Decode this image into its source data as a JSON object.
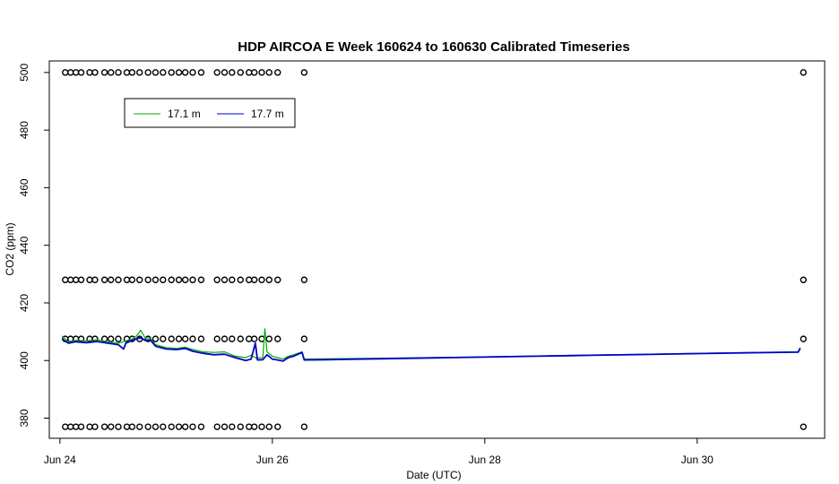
{
  "chart_data": {
    "type": "line",
    "title": "HDP AIRCOA E  Week 160624 to 160630  Calibrated Timeseries",
    "xlabel": "Date (UTC)",
    "ylabel": "CO2 (ppm)",
    "xlim": [
      23.9,
      31.2
    ],
    "ylim": [
      373,
      504
    ],
    "x_ticks": [
      {
        "value": 24,
        "label": "Jun 24"
      },
      {
        "value": 26,
        "label": "Jun 26"
      },
      {
        "value": 28,
        "label": "Jun 28"
      },
      {
        "value": 30,
        "label": "Jun 30"
      }
    ],
    "y_ticks": [
      380,
      400,
      420,
      440,
      460,
      480,
      500
    ],
    "legend": {
      "position": "top-left",
      "entries": [
        {
          "label": "17.1 m",
          "color": "#00aa00"
        },
        {
          "label": "17.7 m",
          "color": "#0000cc"
        }
      ]
    },
    "series": [
      {
        "name": "17.1 m",
        "color": "#00aa00",
        "points": [
          [
            24.02,
            408.5
          ],
          [
            24.08,
            406.5
          ],
          [
            24.15,
            407.0
          ],
          [
            24.25,
            406.8
          ],
          [
            24.35,
            407.2
          ],
          [
            24.45,
            406.5
          ],
          [
            24.55,
            406.0
          ],
          [
            24.62,
            406.8
          ],
          [
            24.68,
            407.5
          ],
          [
            24.72,
            408.5
          ],
          [
            24.76,
            410.5
          ],
          [
            24.8,
            408.0
          ],
          [
            24.85,
            407.8
          ],
          [
            24.9,
            405.5
          ],
          [
            25.0,
            404.5
          ],
          [
            25.1,
            404.2
          ],
          [
            25.18,
            404.6
          ],
          [
            25.25,
            403.8
          ],
          [
            25.35,
            403.0
          ],
          [
            25.45,
            402.8
          ],
          [
            25.55,
            403.0
          ],
          [
            25.65,
            401.5
          ],
          [
            25.75,
            401.0
          ],
          [
            25.8,
            401.8
          ],
          [
            25.85,
            400.8
          ],
          [
            25.91,
            401.0
          ],
          [
            25.93,
            411.0
          ],
          [
            25.95,
            403.0
          ],
          [
            26.0,
            401.5
          ],
          [
            26.05,
            401.0
          ],
          [
            26.1,
            400.5
          ],
          [
            26.15,
            401.5
          ],
          [
            26.2,
            402.0
          ],
          [
            26.28,
            403.0
          ],
          [
            26.3,
            400.5
          ],
          [
            26.5,
            400.6
          ],
          [
            27.0,
            400.8
          ],
          [
            27.5,
            401.0
          ],
          [
            28.0,
            401.3
          ],
          [
            28.5,
            401.6
          ],
          [
            29.0,
            401.9
          ],
          [
            29.5,
            402.2
          ],
          [
            30.0,
            402.5
          ],
          [
            30.5,
            402.8
          ],
          [
            30.95,
            403.0
          ],
          [
            30.97,
            404.5
          ]
        ]
      },
      {
        "name": "17.7 m",
        "color": "#0000cc",
        "points": [
          [
            24.02,
            407.5
          ],
          [
            24.08,
            406.0
          ],
          [
            24.15,
            406.5
          ],
          [
            24.25,
            406.2
          ],
          [
            24.35,
            406.6
          ],
          [
            24.45,
            406.0
          ],
          [
            24.55,
            405.5
          ],
          [
            24.6,
            404.0
          ],
          [
            24.62,
            406.0
          ],
          [
            24.68,
            407.0
          ],
          [
            24.72,
            407.5
          ],
          [
            24.76,
            408.0
          ],
          [
            24.8,
            407.0
          ],
          [
            24.85,
            407.2
          ],
          [
            24.9,
            405.0
          ],
          [
            25.0,
            404.0
          ],
          [
            25.1,
            403.8
          ],
          [
            25.18,
            404.2
          ],
          [
            25.25,
            403.2
          ],
          [
            25.35,
            402.5
          ],
          [
            25.45,
            402.0
          ],
          [
            25.55,
            402.2
          ],
          [
            25.65,
            401.0
          ],
          [
            25.75,
            400.0
          ],
          [
            25.8,
            400.5
          ],
          [
            25.84,
            406.0
          ],
          [
            25.86,
            400.2
          ],
          [
            25.91,
            400.3
          ],
          [
            25.95,
            402.0
          ],
          [
            26.0,
            400.5
          ],
          [
            26.05,
            400.2
          ],
          [
            26.1,
            399.8
          ],
          [
            26.15,
            401.0
          ],
          [
            26.2,
            401.5
          ],
          [
            26.28,
            402.8
          ],
          [
            26.3,
            400.2
          ],
          [
            26.5,
            400.3
          ],
          [
            27.0,
            400.6
          ],
          [
            27.5,
            400.9
          ],
          [
            28.0,
            401.2
          ],
          [
            28.5,
            401.5
          ],
          [
            29.0,
            401.8
          ],
          [
            29.5,
            402.1
          ],
          [
            30.0,
            402.4
          ],
          [
            30.5,
            402.7
          ],
          [
            30.95,
            402.9
          ],
          [
            30.97,
            404.2
          ]
        ]
      }
    ],
    "calibration_points": {
      "marker": "open-circle",
      "levels": [
        500,
        428,
        407.5,
        377
      ],
      "x": [
        24.05,
        24.1,
        24.15,
        24.2,
        24.28,
        24.33,
        24.42,
        24.48,
        24.55,
        24.63,
        24.68,
        24.75,
        24.83,
        24.9,
        24.97,
        25.05,
        25.12,
        25.18,
        25.25,
        25.33,
        25.48,
        25.55,
        25.62,
        25.7,
        25.78,
        25.83,
        25.9,
        25.97,
        26.05,
        26.3,
        31.0
      ]
    }
  }
}
